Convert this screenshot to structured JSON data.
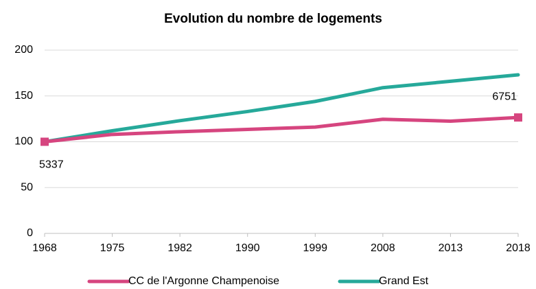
{
  "chart_data": {
    "type": "line",
    "title": "Evolution du nombre de logements",
    "categories": [
      "1968",
      "1975",
      "1982",
      "1990",
      "1999",
      "2008",
      "2013",
      "2018"
    ],
    "series": [
      {
        "name": "CC de l'Argonne Champenoise",
        "color": "#d6457f",
        "values": [
          100,
          108,
          111,
          113.5,
          116,
          124.5,
          122.5,
          126.5
        ]
      },
      {
        "name": "Grand Est",
        "color": "#26a99a",
        "values": [
          100,
          112,
          123,
          133,
          144,
          159,
          166,
          173
        ]
      }
    ],
    "annotations": [
      "5337",
      "6751"
    ],
    "ylim": [
      0,
      200
    ],
    "yticks": [
      0,
      50,
      100,
      150,
      200
    ],
    "grid": true
  }
}
